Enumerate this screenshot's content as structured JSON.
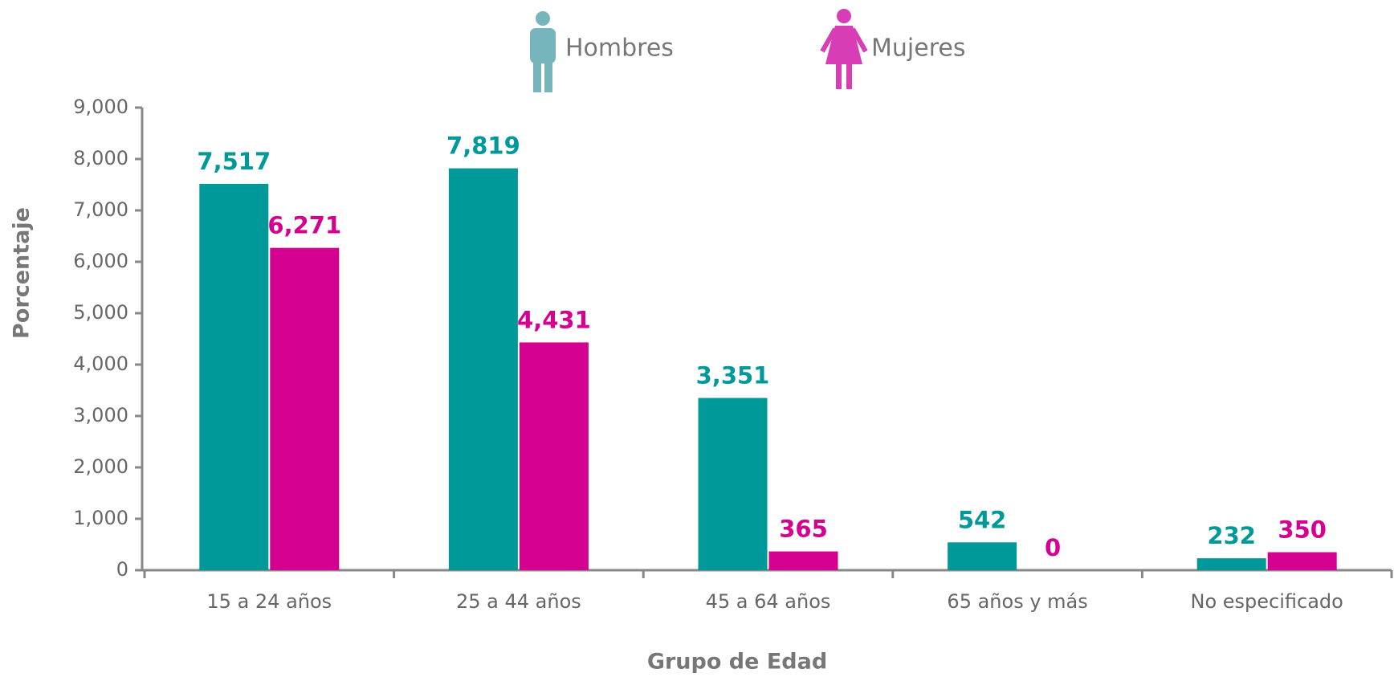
{
  "chart_data": {
    "type": "bar",
    "x_label": "Grupo de Edad",
    "y_label": "Porcentaje",
    "categories": [
      "15 a 24 años",
      "25 a 44 años",
      "45 a 64 años",
      "65 años y más",
      "No especificado"
    ],
    "series": [
      {
        "name": "Hombres",
        "color": "#009999",
        "values": [
          7517,
          7819,
          3351,
          542,
          232
        ],
        "value_labels": [
          "7,517",
          "7,819",
          "3,351",
          "542",
          "232"
        ]
      },
      {
        "name": "Mujeres",
        "color": "#d4008f",
        "values": [
          6271,
          4431,
          365,
          0,
          350
        ],
        "value_labels": [
          "6,271",
          "4,431",
          "365",
          "0",
          "350"
        ]
      }
    ],
    "ylim": [
      0,
      9000
    ],
    "yticks": [
      0,
      {
        "value": 1000,
        "label": "1,000"
      },
      {
        "value": 2000,
        "label": "2,000"
      },
      {
        "value": 3000,
        "label": "3,000"
      },
      {
        "value": 4000,
        "label": "4,000"
      },
      {
        "value": 5000,
        "label": "5,000"
      },
      {
        "value": 6000,
        "label": "6,000"
      },
      {
        "value": 7000,
        "label": "7,000"
      },
      {
        "value": 8000,
        "label": "8,000"
      },
      {
        "value": 9000,
        "label": "9,000"
      }
    ],
    "grid": false
  }
}
